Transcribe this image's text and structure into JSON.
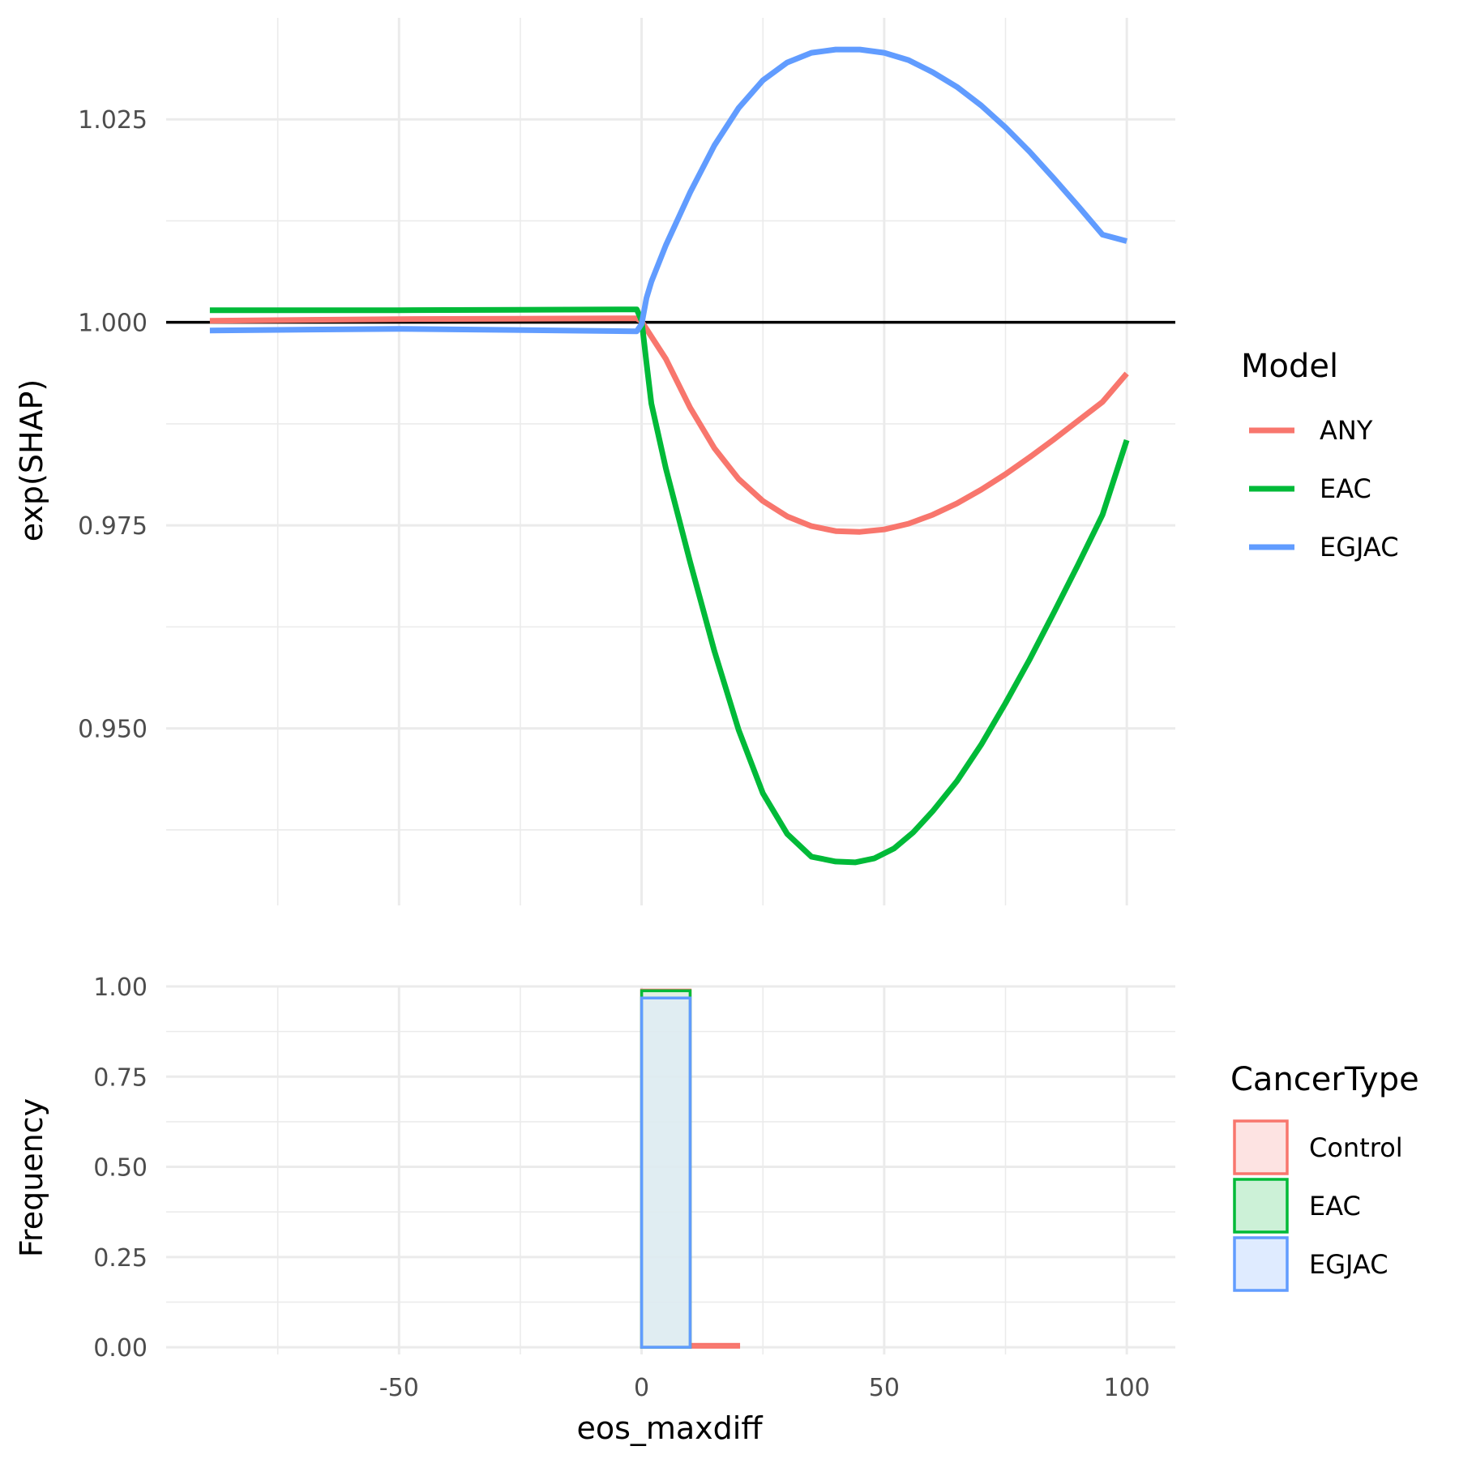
{
  "chart_data": [
    {
      "type": "line",
      "ylabel": "exp(SHAP)",
      "xlim": [
        -98,
        110
      ],
      "ylim": [
        0.9282,
        1.0375
      ],
      "x_ticks": [
        -50,
        0,
        50,
        100
      ],
      "y_ticks": [
        0.95,
        0.975,
        1.0,
        1.025
      ],
      "y_tick_labels": [
        "0.950",
        "0.975",
        "1.000",
        "1.025"
      ],
      "reference_line": 1.0,
      "grid": true,
      "legend": {
        "title": "Model",
        "position": "right",
        "entries": [
          {
            "label": "ANY",
            "color": "#f8766d"
          },
          {
            "label": "EAC",
            "color": "#00ba38"
          },
          {
            "label": "EGJAC",
            "color": "#619cff"
          }
        ]
      },
      "series": [
        {
          "name": "ANY",
          "color": "#f8766d",
          "x": [
            -89,
            -50,
            -1,
            0,
            5,
            10,
            15,
            20,
            25,
            30,
            35,
            40,
            45,
            50,
            55,
            60,
            65,
            70,
            75,
            80,
            85,
            90,
            95,
            100
          ],
          "y": [
            1.0002,
            1.0004,
            1.0005,
            1.0001,
            0.9955,
            0.9895,
            0.9845,
            0.9807,
            0.978,
            0.9761,
            0.9749,
            0.9743,
            0.9742,
            0.9745,
            0.9752,
            0.9763,
            0.9777,
            0.9794,
            0.9813,
            0.9834,
            0.9856,
            0.9879,
            0.9902,
            0.9937
          ]
        },
        {
          "name": "EAC",
          "color": "#00ba38",
          "x": [
            -89,
            -50,
            -1,
            0,
            1,
            2,
            5,
            10,
            15,
            20,
            25,
            30,
            35,
            40,
            44,
            48,
            52,
            56,
            60,
            65,
            70,
            75,
            80,
            85,
            90,
            95,
            100
          ],
          "y": [
            1.0015,
            1.0015,
            1.0016,
            1.0002,
            0.995,
            0.99,
            0.982,
            0.9705,
            0.9595,
            0.9498,
            0.942,
            0.937,
            0.9342,
            0.9336,
            0.9335,
            0.934,
            0.9352,
            0.9372,
            0.9398,
            0.9435,
            0.948,
            0.9531,
            0.9585,
            0.9643,
            0.9702,
            0.9763,
            0.9855
          ]
        },
        {
          "name": "EGJAC",
          "color": "#619cff",
          "x": [
            -89,
            -50,
            -1,
            0,
            1,
            2,
            5,
            10,
            15,
            20,
            25,
            30,
            35,
            40,
            45,
            50,
            55,
            60,
            65,
            70,
            75,
            80,
            85,
            90,
            95,
            100
          ],
          "y": [
            0.999,
            0.9992,
            0.9989,
            0.9998,
            1.003,
            1.005,
            1.0095,
            1.016,
            1.0218,
            1.0264,
            1.0298,
            1.032,
            1.0332,
            1.0336,
            1.0336,
            1.0332,
            1.0323,
            1.0308,
            1.029,
            1.0267,
            1.024,
            1.021,
            1.0177,
            1.0143,
            1.0108,
            1.01
          ]
        }
      ]
    },
    {
      "type": "bar",
      "xlabel": "eos_maxdiff",
      "ylabel": "Frequency",
      "xlim": [
        -98,
        110
      ],
      "ylim": [
        -0.02,
        1.0
      ],
      "x_ticks": [
        -50,
        0,
        50,
        100
      ],
      "x_tick_labels": [
        "-50",
        "0",
        "50",
        "100"
      ],
      "y_ticks": [
        0,
        0.25,
        0.5,
        0.75,
        1.0
      ],
      "y_tick_labels": [
        "0.00",
        "0.25",
        "0.50",
        "0.75",
        "1.00"
      ],
      "bin_width": 10,
      "bin_centers": [
        -85,
        -75,
        -65,
        -55,
        -45,
        -35,
        -25,
        -15,
        -5,
        5,
        15,
        25,
        35,
        45,
        55,
        65,
        75,
        85,
        95
      ],
      "grid": true,
      "legend": {
        "title": "CancerType",
        "position": "right",
        "entries": [
          {
            "label": "Control",
            "color": "#f8766d",
            "fill": "#fde3e2"
          },
          {
            "label": "EAC",
            "color": "#00ba38",
            "fill": "#ccf1d7"
          },
          {
            "label": "EGJAC",
            "color": "#619cff",
            "fill": "#dfebff"
          }
        ]
      },
      "series": [
        {
          "name": "Control",
          "color": "#f8766d",
          "values": [
            0,
            0,
            0,
            0,
            0,
            0,
            0,
            0,
            0,
            0.99,
            0.008,
            0,
            0,
            0,
            0,
            0,
            0,
            0,
            0
          ]
        },
        {
          "name": "EAC",
          "color": "#00ba38",
          "values": [
            0,
            0,
            0,
            0,
            0,
            0,
            0,
            0,
            0,
            0.988,
            0,
            0,
            0,
            0,
            0,
            0,
            0,
            0,
            0
          ]
        },
        {
          "name": "EGJAC",
          "color": "#619cff",
          "values": [
            0,
            0,
            0,
            0,
            0,
            0,
            0,
            0,
            0,
            0.968,
            0,
            0,
            0,
            0,
            0,
            0,
            0,
            0,
            0
          ]
        }
      ]
    }
  ]
}
